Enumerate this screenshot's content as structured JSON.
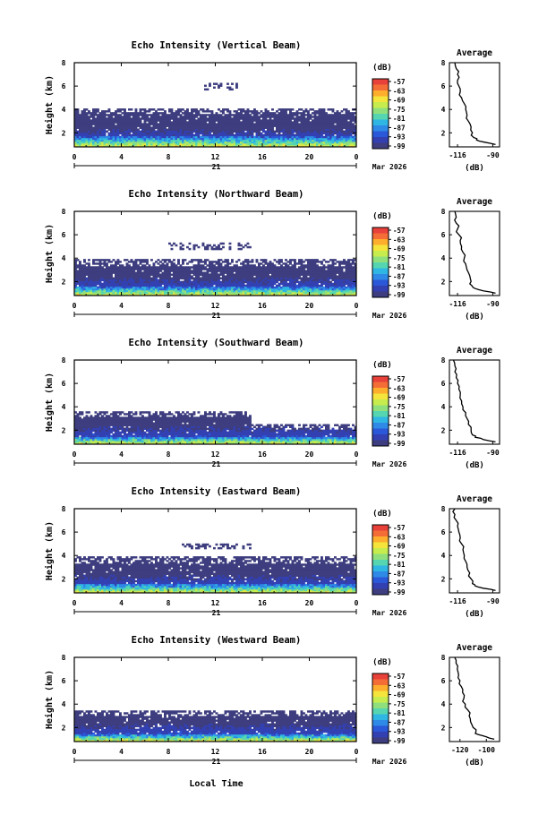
{
  "colorbar": {
    "unit": "(dB)",
    "ticks": [
      "-57",
      "-63",
      "-69",
      "-75",
      "-81",
      "-87",
      "-93",
      "-99"
    ],
    "colors": [
      "#e8413a",
      "#f46d36",
      "#fdae2d",
      "#f5e43b",
      "#c7ec4d",
      "#8fe07c",
      "#55d6b0",
      "#2fb6e3",
      "#2e8ae6",
      "#2b58d8",
      "#3340b2",
      "#3d3d7f"
    ]
  },
  "date_label": "Mar 2026",
  "day_label": "21",
  "xaxis_label": "Local Time",
  "chart_data": [
    {
      "type": "heatmap",
      "title": "Echo Intensity (Vertical Beam)",
      "ylabel": "Height (km)",
      "x_ticks": [
        "0",
        "4",
        "8",
        "12",
        "16",
        "20",
        "0"
      ],
      "xlim": [
        0,
        24
      ],
      "y_ticks": [
        "2",
        "4",
        "6",
        "8"
      ],
      "ylim": [
        0.8,
        8
      ],
      "layers": [
        {
          "top_km": 4.0,
          "from_h": 0,
          "to_h": 24,
          "dB": -99
        },
        {
          "top_km": 6.2,
          "from_h": 11,
          "to_h": 14,
          "dB": -99,
          "sparse": true
        },
        {
          "top_km": 1.6,
          "from_h": 0,
          "to_h": 24,
          "dB": -90
        }
      ],
      "average_profile": {
        "title": "Average",
        "xlabel": "(dB)",
        "x_ticks": [
          "-116",
          "-90"
        ],
        "xlim": [
          -122,
          -85
        ],
        "y_ticks": [
          "2",
          "4",
          "6",
          "8"
        ],
        "ylim": [
          0.8,
          8
        ],
        "height_km": [
          1.0,
          1.2,
          1.4,
          1.6,
          2.0,
          2.5,
          3.0,
          3.5,
          4.0,
          4.5,
          5.0,
          5.5,
          6.0,
          6.5,
          7.0,
          7.5,
          8.0
        ],
        "dB": [
          -88,
          -96,
          -102,
          -104,
          -105,
          -106,
          -108,
          -109,
          -110,
          -111,
          -113,
          -114,
          -115,
          -116,
          -116,
          -117,
          -118
        ]
      }
    },
    {
      "type": "heatmap",
      "title": "Echo Intensity (Northward Beam)",
      "ylabel": "Height (km)",
      "x_ticks": [
        "0",
        "4",
        "8",
        "12",
        "16",
        "20",
        "0"
      ],
      "xlim": [
        0,
        24
      ],
      "y_ticks": [
        "2",
        "4",
        "6",
        "8"
      ],
      "ylim": [
        0.8,
        8
      ],
      "layers": [
        {
          "top_km": 3.8,
          "from_h": 0,
          "to_h": 24,
          "dB": -99
        },
        {
          "top_km": 5.2,
          "from_h": 8,
          "to_h": 15,
          "dB": -99,
          "sparse": true
        },
        {
          "top_km": 1.5,
          "from_h": 0,
          "to_h": 24,
          "dB": -90
        }
      ],
      "average_profile": {
        "title": "Average",
        "xlabel": "(dB)",
        "x_ticks": [
          "-116",
          "-90"
        ],
        "xlim": [
          -122,
          -85
        ],
        "y_ticks": [
          "2",
          "4",
          "6",
          "8"
        ],
        "ylim": [
          0.8,
          8
        ],
        "height_km": [
          1.0,
          1.2,
          1.4,
          1.6,
          2.0,
          2.5,
          3.0,
          3.5,
          4.0,
          4.5,
          5.0,
          5.5,
          6.0,
          6.5,
          7.0,
          7.5,
          8.0
        ],
        "dB": [
          -88,
          -97,
          -103,
          -105,
          -106,
          -107,
          -109,
          -110,
          -111,
          -112,
          -113,
          -114,
          -115,
          -116,
          -117,
          -117,
          -118
        ]
      }
    },
    {
      "type": "heatmap",
      "title": "Echo Intensity (Southward Beam)",
      "ylabel": "Height (km)",
      "x_ticks": [
        "0",
        "4",
        "8",
        "12",
        "16",
        "20",
        "0"
      ],
      "xlim": [
        0,
        24
      ],
      "y_ticks": [
        "2",
        "4",
        "6",
        "8"
      ],
      "ylim": [
        0.8,
        8
      ],
      "layers": [
        {
          "top_km": 3.6,
          "from_h": 0,
          "to_h": 15,
          "dB": -99
        },
        {
          "top_km": 2.4,
          "from_h": 15,
          "to_h": 24,
          "dB": -99
        },
        {
          "top_km": 1.4,
          "from_h": 0,
          "to_h": 24,
          "dB": -90
        }
      ],
      "average_profile": {
        "title": "Average",
        "xlabel": "(dB)",
        "x_ticks": [
          "-116",
          "-90"
        ],
        "xlim": [
          -122,
          -85
        ],
        "y_ticks": [
          "2",
          "4",
          "6",
          "8"
        ],
        "ylim": [
          0.8,
          8
        ],
        "height_km": [
          1.0,
          1.2,
          1.4,
          1.6,
          2.0,
          2.5,
          3.0,
          3.5,
          4.0,
          4.5,
          5.0,
          5.5,
          6.0,
          6.5,
          7.0,
          7.5,
          8.0
        ],
        "dB": [
          -88,
          -97,
          -103,
          -105,
          -106,
          -108,
          -109,
          -110,
          -112,
          -113,
          -114,
          -115,
          -116,
          -117,
          -118,
          -118,
          -119
        ]
      }
    },
    {
      "type": "heatmap",
      "title": "Echo Intensity (Eastward Beam)",
      "ylabel": "Height (km)",
      "x_ticks": [
        "0",
        "4",
        "8",
        "12",
        "16",
        "20",
        "0"
      ],
      "xlim": [
        0,
        24
      ],
      "y_ticks": [
        "2",
        "4",
        "6",
        "8"
      ],
      "ylim": [
        0.8,
        8
      ],
      "layers": [
        {
          "top_km": 3.8,
          "from_h": 0,
          "to_h": 24,
          "dB": -99
        },
        {
          "top_km": 5.0,
          "from_h": 9,
          "to_h": 15,
          "dB": -99,
          "sparse": true
        },
        {
          "top_km": 1.5,
          "from_h": 0,
          "to_h": 24,
          "dB": -90
        }
      ],
      "average_profile": {
        "title": "Average",
        "xlabel": "(dB)",
        "x_ticks": [
          "-116",
          "-90"
        ],
        "xlim": [
          -122,
          -85
        ],
        "y_ticks": [
          "2",
          "4",
          "6",
          "8"
        ],
        "ylim": [
          0.8,
          8
        ],
        "height_km": [
          1.0,
          1.2,
          1.4,
          1.6,
          2.0,
          2.5,
          3.0,
          3.5,
          4.0,
          4.5,
          5.0,
          5.5,
          6.0,
          6.5,
          7.0,
          7.5,
          8.0
        ],
        "dB": [
          -88,
          -97,
          -103,
          -105,
          -106,
          -107,
          -109,
          -110,
          -111,
          -112,
          -113,
          -114,
          -115,
          -116,
          -117,
          -118,
          -118
        ]
      }
    },
    {
      "type": "heatmap",
      "title": "Echo Intensity (Westward Beam)",
      "ylabel": "Height (km)",
      "x_ticks": [
        "0",
        "4",
        "8",
        "12",
        "16",
        "20",
        "0"
      ],
      "xlim": [
        0,
        24
      ],
      "y_ticks": [
        "2",
        "4",
        "6",
        "8"
      ],
      "ylim": [
        0.8,
        8
      ],
      "layers": [
        {
          "top_km": 3.4,
          "from_h": 0,
          "to_h": 24,
          "dB": -99
        },
        {
          "top_km": 1.4,
          "from_h": 0,
          "to_h": 24,
          "dB": -90
        }
      ],
      "average_profile": {
        "title": "Average",
        "xlabel": "(dB)",
        "x_ticks": [
          "-120",
          "-100"
        ],
        "xlim": [
          -128,
          -90
        ],
        "y_ticks": [
          "2",
          "4",
          "6",
          "8"
        ],
        "ylim": [
          0.8,
          8
        ],
        "height_km": [
          1.0,
          1.2,
          1.4,
          1.6,
          2.0,
          2.5,
          3.0,
          3.5,
          4.0,
          4.5,
          5.0,
          5.5,
          6.0,
          6.5,
          7.0,
          7.5,
          8.0
        ],
        "dB": [
          -94,
          -100,
          -106,
          -108,
          -110,
          -112,
          -113,
          -114,
          -116,
          -117,
          -118,
          -119,
          -120,
          -121,
          -122,
          -123,
          -124
        ]
      }
    }
  ]
}
